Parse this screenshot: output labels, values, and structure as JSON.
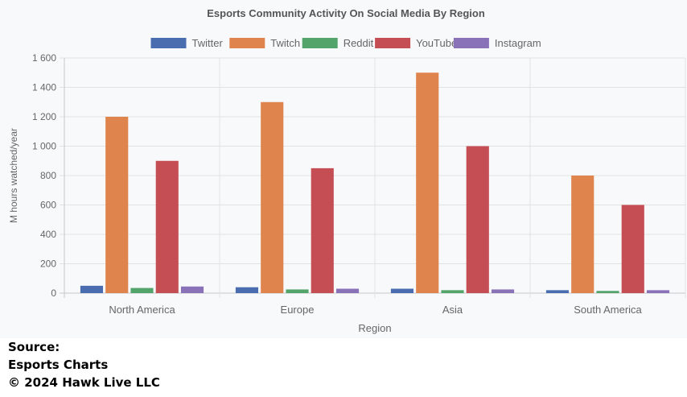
{
  "chart_data": {
    "type": "bar",
    "title": "Esports Community Activity On Social Media By Region",
    "xlabel": "Region",
    "ylabel": "M hours watched/year",
    "categories": [
      "North America",
      "Europe",
      "Asia",
      "South America"
    ],
    "series": [
      {
        "name": "Twitter",
        "color": "#4a6db0",
        "values": [
          50,
          40,
          30,
          20
        ]
      },
      {
        "name": "Twitch",
        "color": "#e0844e",
        "values": [
          1200,
          1300,
          1500,
          800
        ]
      },
      {
        "name": "Reddit",
        "color": "#52a46a",
        "values": [
          35,
          25,
          20,
          15
        ]
      },
      {
        "name": "YouTube",
        "color": "#c54d54",
        "values": [
          900,
          850,
          1000,
          600
        ]
      },
      {
        "name": "Instagram",
        "color": "#8a72b8",
        "values": [
          45,
          30,
          25,
          20
        ]
      }
    ],
    "ylim": [
      0,
      1600
    ],
    "yticks": [
      0,
      200,
      400,
      600,
      800,
      1000,
      1200,
      1400,
      1600
    ],
    "ytick_labels": [
      "0",
      "200",
      "400",
      "600",
      "800",
      "1 000",
      "1 200",
      "1 400",
      "1 600"
    ],
    "grid": true,
    "legend": "top-center"
  },
  "source": {
    "label": "Source:",
    "name": "Esports Charts",
    "copyright": "© 2024 Hawk Live LLC"
  }
}
